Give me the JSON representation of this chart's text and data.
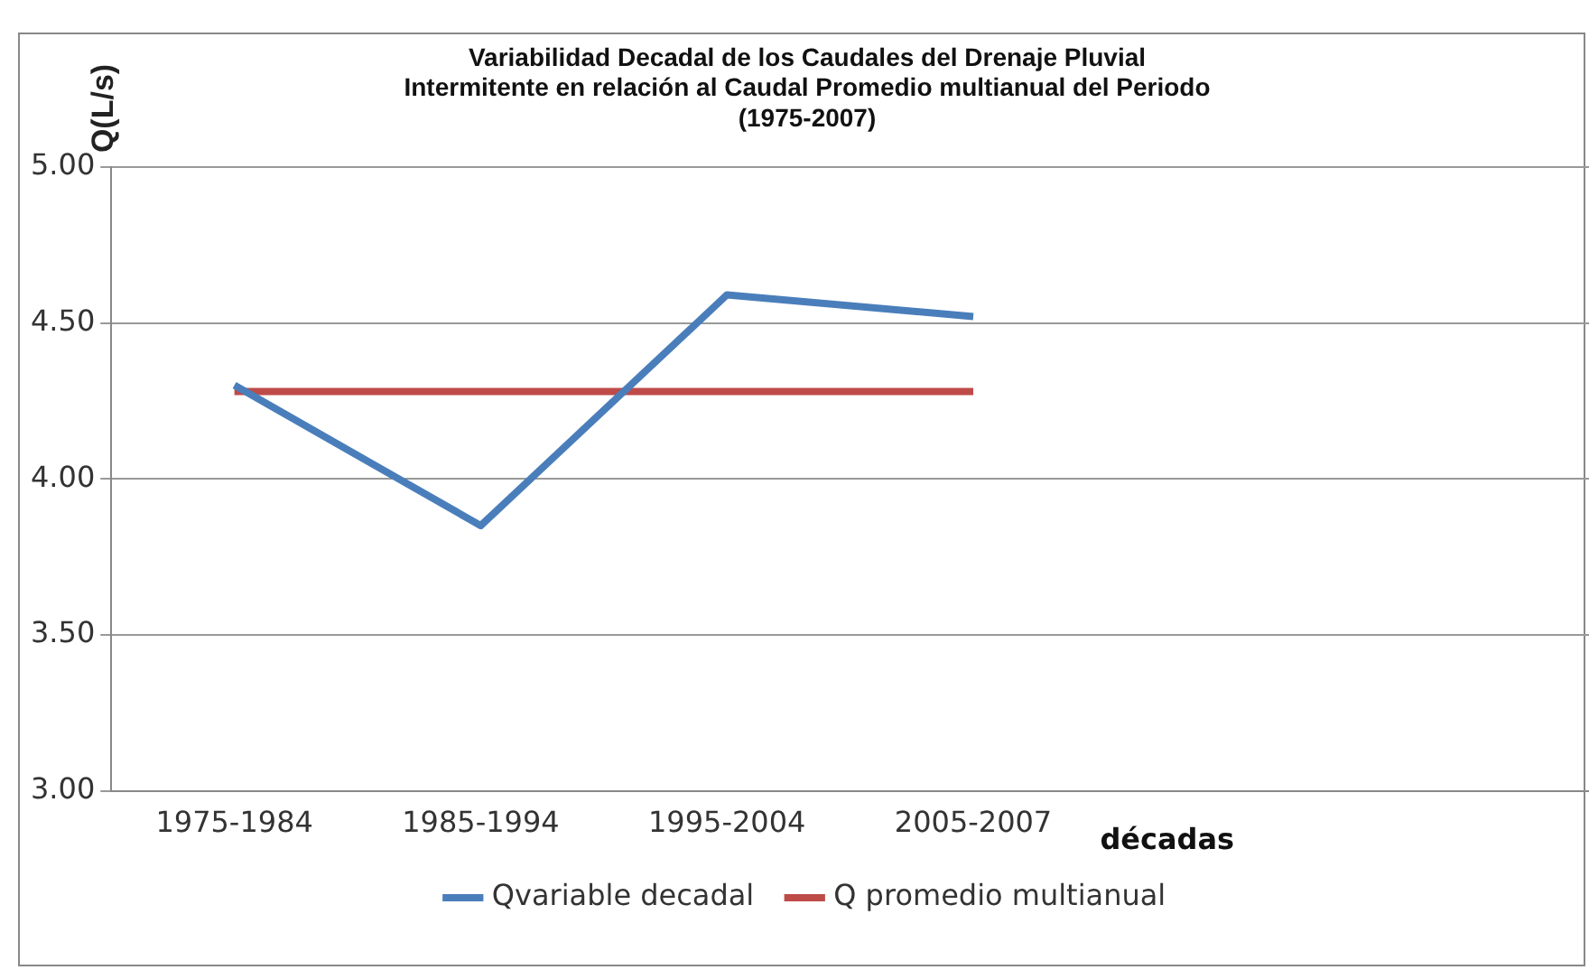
{
  "chart_data": {
    "type": "line",
    "title": [
      "Variabilidad Decadal de los Caudales del Drenaje Pluvial",
      "Intermitente en relación al Caudal Promedio multianual del Periodo",
      "(1975-2007)"
    ],
    "ylabel": "Q(L/s)",
    "xlabel": "décadas",
    "categories": [
      "1975-1984",
      "1985-1994",
      "1995-2004",
      "2005-2007",
      null,
      null
    ],
    "series": [
      {
        "name": "Qvariable decadal",
        "color": "#4a7ebb",
        "values": [
          4.3,
          3.85,
          4.59,
          4.52,
          null,
          null
        ]
      },
      {
        "name": "Q promedio multianual",
        "color": "#be4b48",
        "values": [
          4.28,
          4.28,
          4.28,
          4.28,
          null,
          null
        ]
      }
    ],
    "ylim": [
      3,
      5
    ],
    "yticks": [
      {
        "value": 3,
        "label": "3.00"
      },
      {
        "value": 3.5,
        "label": "3.50"
      },
      {
        "value": 4,
        "label": "4.00"
      },
      {
        "value": 4.5,
        "label": "4.50"
      },
      {
        "value": 5,
        "label": "5.00"
      }
    ],
    "grid": "y",
    "legend": "bottom",
    "marker": "none",
    "line_style": "solid"
  }
}
